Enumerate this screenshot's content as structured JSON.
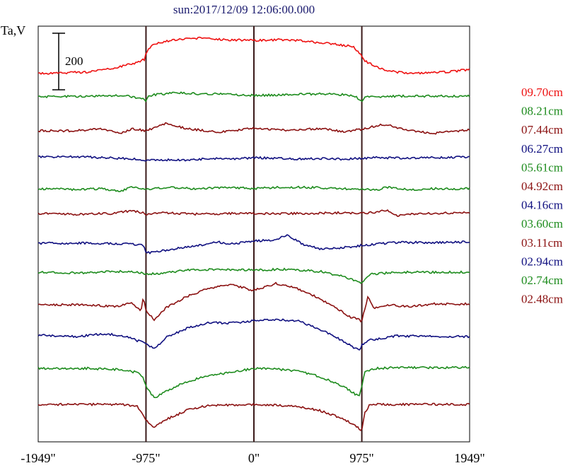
{
  "chart_data": {
    "type": "line",
    "title": "sun:2017/12/09 12:06:00.000",
    "ylabel": "Ta,V",
    "xlabel": "",
    "scale_bar_label": "200",
    "scale_bar_value": 200,
    "x_ticks": [
      {
        "value": -1949,
        "label": "-1949\""
      },
      {
        "value": -975,
        "label": "-975\""
      },
      {
        "value": 0,
        "label": "0\""
      },
      {
        "value": 975,
        "label": "975\""
      },
      {
        "value": 1949,
        "label": "1949\""
      }
    ],
    "xlim": [
      -1949,
      1949
    ],
    "vertical_lines": [
      -975,
      0,
      975
    ],
    "grid": false,
    "legend_position": "right",
    "series": [
      {
        "name": "09.70cm",
        "color": "#ee1111",
        "offset": 0,
        "points": [
          [
            -1949,
            0
          ],
          [
            -1500,
            2
          ],
          [
            -1200,
            10
          ],
          [
            -1050,
            16
          ],
          [
            -990,
            20
          ],
          [
            -975,
            30
          ],
          [
            -900,
            42
          ],
          [
            -700,
            48
          ],
          [
            -500,
            50
          ],
          [
            -300,
            48
          ],
          [
            0,
            47
          ],
          [
            300,
            48
          ],
          [
            500,
            45
          ],
          [
            700,
            42
          ],
          [
            900,
            38
          ],
          [
            975,
            25
          ],
          [
            1000,
            18
          ],
          [
            1100,
            10
          ],
          [
            1200,
            4
          ],
          [
            1400,
            0
          ],
          [
            1600,
            1
          ],
          [
            1800,
            3
          ],
          [
            1949,
            6
          ]
        ]
      },
      {
        "name": "08.21cm",
        "color": "#1e8c1e",
        "offset": 33,
        "points": [
          [
            -1949,
            0
          ],
          [
            -1500,
            1
          ],
          [
            -1200,
            2
          ],
          [
            -1000,
            -2
          ],
          [
            -975,
            -6
          ],
          [
            -950,
            2
          ],
          [
            -700,
            6
          ],
          [
            -500,
            4
          ],
          [
            -300,
            4
          ],
          [
            0,
            2
          ],
          [
            300,
            3
          ],
          [
            500,
            4
          ],
          [
            700,
            4
          ],
          [
            900,
            2
          ],
          [
            975,
            -6
          ],
          [
            1000,
            0
          ],
          [
            1300,
            1
          ],
          [
            1600,
            1
          ],
          [
            1949,
            1
          ]
        ]
      },
      {
        "name": "07.44cm",
        "color": "#8b1111",
        "offset": 81,
        "points": [
          [
            -1949,
            0
          ],
          [
            -1600,
            0
          ],
          [
            -1400,
            3
          ],
          [
            -1200,
            -3
          ],
          [
            -1100,
            3
          ],
          [
            -975,
            0
          ],
          [
            -800,
            10
          ],
          [
            -600,
            3
          ],
          [
            -300,
            -2
          ],
          [
            0,
            4
          ],
          [
            300,
            1
          ],
          [
            600,
            3
          ],
          [
            800,
            -1
          ],
          [
            975,
            2
          ],
          [
            1100,
            7
          ],
          [
            1200,
            9
          ],
          [
            1300,
            4
          ],
          [
            1450,
            0
          ],
          [
            1600,
            -4
          ],
          [
            1800,
            -1
          ],
          [
            1949,
            2
          ]
        ]
      },
      {
        "name": "06.27cm",
        "color": "#101080",
        "offset": 118,
        "points": [
          [
            -1949,
            0
          ],
          [
            -1500,
            0
          ],
          [
            -1200,
            -2
          ],
          [
            -1050,
            -3
          ],
          [
            -975,
            -5
          ],
          [
            -800,
            -4
          ],
          [
            -600,
            -5
          ],
          [
            -400,
            -2
          ],
          [
            -200,
            -3
          ],
          [
            0,
            -1
          ],
          [
            200,
            -2
          ],
          [
            400,
            -3
          ],
          [
            600,
            -2
          ],
          [
            800,
            -3
          ],
          [
            975,
            -2
          ],
          [
            1100,
            -1
          ],
          [
            1400,
            -2
          ],
          [
            1600,
            -1
          ],
          [
            1949,
            0
          ]
        ]
      },
      {
        "name": "05.61cm",
        "color": "#1e8c1e",
        "offset": 163,
        "points": [
          [
            -1949,
            0
          ],
          [
            -1600,
            -1
          ],
          [
            -1400,
            0
          ],
          [
            -1200,
            -3
          ],
          [
            -1100,
            3
          ],
          [
            -975,
            -1
          ],
          [
            -800,
            2
          ],
          [
            -500,
            0
          ],
          [
            -200,
            2
          ],
          [
            0,
            0
          ],
          [
            200,
            2
          ],
          [
            500,
            2
          ],
          [
            800,
            0
          ],
          [
            975,
            0
          ],
          [
            1100,
            -2
          ],
          [
            1200,
            2
          ],
          [
            1400,
            -1
          ],
          [
            1600,
            0
          ],
          [
            1949,
            0
          ]
        ]
      },
      {
        "name": "04.92cm",
        "color": "#8b1111",
        "offset": 198,
        "points": [
          [
            -1949,
            0
          ],
          [
            -1600,
            -1
          ],
          [
            -1300,
            0
          ],
          [
            -1100,
            4
          ],
          [
            -1000,
            1
          ],
          [
            -975,
            -1
          ],
          [
            -800,
            1
          ],
          [
            -500,
            -1
          ],
          [
            -200,
            0
          ],
          [
            0,
            0
          ],
          [
            200,
            0
          ],
          [
            500,
            0
          ],
          [
            800,
            1
          ],
          [
            975,
            0
          ],
          [
            1100,
            2
          ],
          [
            1200,
            5
          ],
          [
            1300,
            -3
          ],
          [
            1500,
            0
          ],
          [
            1949,
            1
          ]
        ]
      },
      {
        "name": "04.16cm",
        "color": "#101080",
        "offset": 240,
        "points": [
          [
            -1949,
            0
          ],
          [
            -1500,
            0
          ],
          [
            -1100,
            -1
          ],
          [
            -1000,
            -3
          ],
          [
            -975,
            -14
          ],
          [
            -800,
            -10
          ],
          [
            -600,
            -5
          ],
          [
            -450,
            -2
          ],
          [
            -350,
            2
          ],
          [
            -200,
            -1
          ],
          [
            0,
            3
          ],
          [
            200,
            5
          ],
          [
            300,
            12
          ],
          [
            450,
            -2
          ],
          [
            600,
            -8
          ],
          [
            700,
            -7
          ],
          [
            900,
            -5
          ],
          [
            975,
            -3
          ],
          [
            1100,
            -1
          ],
          [
            1300,
            1
          ],
          [
            1600,
            1
          ],
          [
            1949,
            2
          ]
        ]
      },
      {
        "name": "03.60cm",
        "color": "#1e8c1e",
        "offset": 281,
        "points": [
          [
            -1949,
            0
          ],
          [
            -1600,
            -1
          ],
          [
            -1200,
            1
          ],
          [
            -1050,
            0
          ],
          [
            -975,
            -3
          ],
          [
            -800,
            -1
          ],
          [
            -600,
            3
          ],
          [
            -300,
            4
          ],
          [
            0,
            3
          ],
          [
            300,
            4
          ],
          [
            600,
            1
          ],
          [
            800,
            -6
          ],
          [
            975,
            -15
          ],
          [
            1050,
            -3
          ],
          [
            1300,
            0
          ],
          [
            1949,
            0
          ]
        ]
      },
      {
        "name": "03.11cm",
        "color": "#8b1111",
        "offset": 327,
        "points": [
          [
            -1949,
            0
          ],
          [
            -1500,
            0
          ],
          [
            -1350,
            -2
          ],
          [
            -1250,
            -3
          ],
          [
            -1100,
            3
          ],
          [
            -1020,
            -10
          ],
          [
            -1000,
            12
          ],
          [
            -975,
            -8
          ],
          [
            -900,
            -22
          ],
          [
            -800,
            -5
          ],
          [
            -600,
            12
          ],
          [
            -400,
            24
          ],
          [
            -200,
            28
          ],
          [
            0,
            20
          ],
          [
            200,
            30
          ],
          [
            350,
            25
          ],
          [
            500,
            16
          ],
          [
            700,
            0
          ],
          [
            850,
            -16
          ],
          [
            975,
            -23
          ],
          [
            1000,
            -7
          ],
          [
            1030,
            12
          ],
          [
            1080,
            -5
          ],
          [
            1200,
            0
          ],
          [
            1400,
            -3
          ],
          [
            1600,
            1
          ],
          [
            1949,
            1
          ]
        ]
      },
      {
        "name": "02.94cm",
        "color": "#101080",
        "offset": 370,
        "points": [
          [
            -1949,
            0
          ],
          [
            -1600,
            -2
          ],
          [
            -1350,
            2
          ],
          [
            -1150,
            -2
          ],
          [
            -1050,
            -8
          ],
          [
            -975,
            -12
          ],
          [
            -900,
            -20
          ],
          [
            -800,
            -4
          ],
          [
            -600,
            10
          ],
          [
            -400,
            18
          ],
          [
            -200,
            17
          ],
          [
            0,
            20
          ],
          [
            200,
            22
          ],
          [
            400,
            20
          ],
          [
            600,
            8
          ],
          [
            800,
            -8
          ],
          [
            950,
            -22
          ],
          [
            975,
            -14
          ],
          [
            1050,
            -7
          ],
          [
            1300,
            -1
          ],
          [
            1600,
            -2
          ],
          [
            1949,
            -2
          ]
        ]
      },
      {
        "name": "02.74cm",
        "color": "#1e8c1e",
        "offset": 417,
        "points": [
          [
            -1949,
            0
          ],
          [
            -1500,
            0
          ],
          [
            -1200,
            -2
          ],
          [
            -1050,
            -6
          ],
          [
            -1000,
            -14
          ],
          [
            -975,
            -26
          ],
          [
            -900,
            -42
          ],
          [
            -700,
            -25
          ],
          [
            -500,
            -14
          ],
          [
            -300,
            -8
          ],
          [
            -100,
            -3
          ],
          [
            0,
            0
          ],
          [
            200,
            -1
          ],
          [
            400,
            -4
          ],
          [
            600,
            -12
          ],
          [
            800,
            -25
          ],
          [
            950,
            -40
          ],
          [
            975,
            -25
          ],
          [
            1000,
            -4
          ],
          [
            1100,
            0
          ],
          [
            1300,
            1
          ],
          [
            1949,
            1
          ]
        ]
      },
      {
        "name": "02.48cm",
        "color": "#8b1111",
        "offset": 468,
        "points": [
          [
            -1949,
            0
          ],
          [
            -1500,
            0
          ],
          [
            -1200,
            0
          ],
          [
            -1050,
            -3
          ],
          [
            -975,
            -22
          ],
          [
            -900,
            -33
          ],
          [
            -800,
            -22
          ],
          [
            -600,
            -8
          ],
          [
            -400,
            -1
          ],
          [
            -200,
            -1
          ],
          [
            0,
            0
          ],
          [
            200,
            -1
          ],
          [
            400,
            -3
          ],
          [
            600,
            -9
          ],
          [
            800,
            -20
          ],
          [
            900,
            -28
          ],
          [
            975,
            -37
          ],
          [
            1000,
            -12
          ],
          [
            1050,
            0
          ],
          [
            1300,
            0
          ],
          [
            1949,
            0
          ]
        ]
      }
    ]
  }
}
